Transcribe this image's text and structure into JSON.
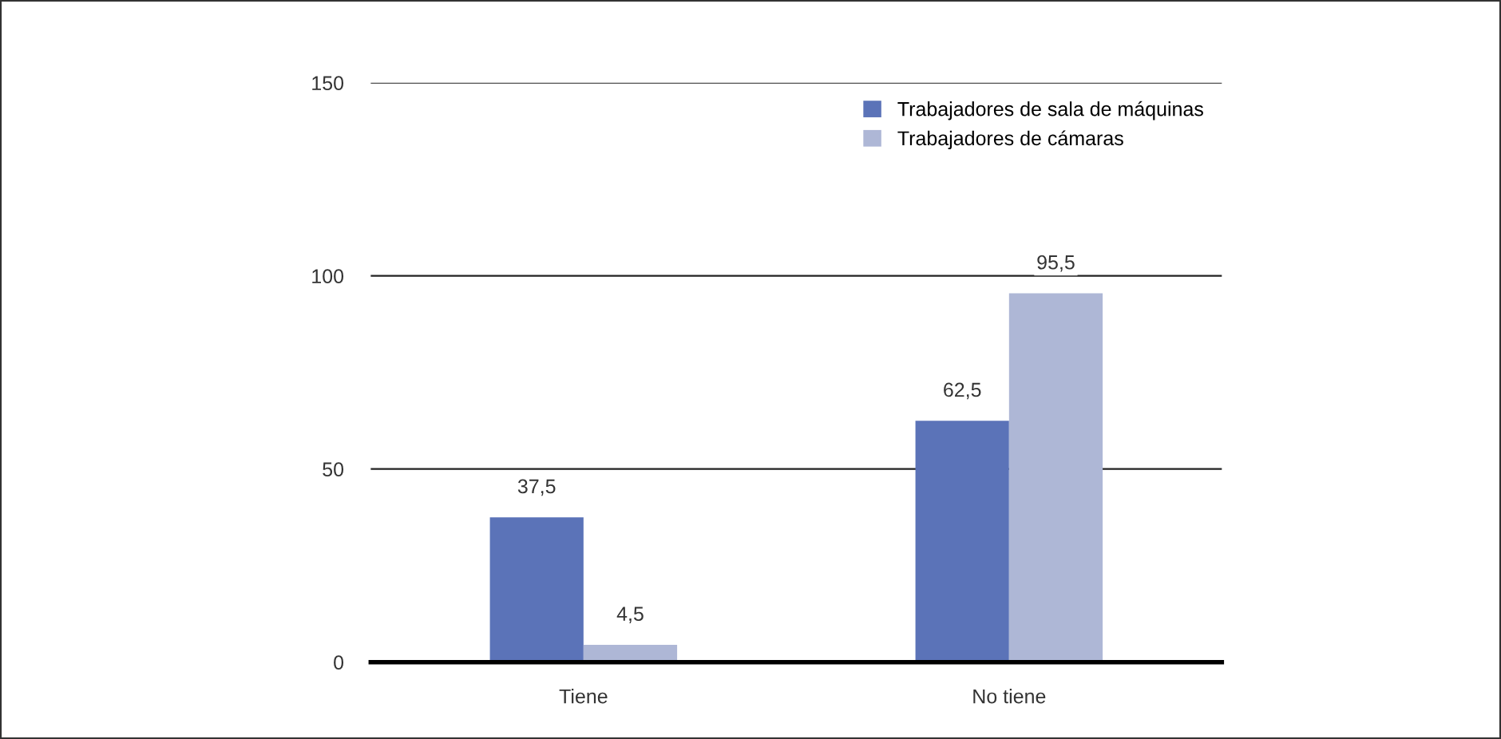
{
  "chart_data": {
    "type": "bar",
    "categories": [
      "Tiene",
      "No tiene"
    ],
    "series": [
      {
        "name": "Trabajadores de sala de máquinas",
        "color": "#5b73b8",
        "values": [
          37.5,
          62.5
        ],
        "value_labels": [
          "37,5",
          "62,5"
        ]
      },
      {
        "name": "Trabajadores de cámaras",
        "color": "#aeb7d6",
        "values": [
          4.5,
          95.5
        ],
        "value_labels": [
          "4,5",
          "95,5"
        ]
      }
    ],
    "ylim": [
      0,
      150
    ],
    "yticks": [
      0,
      50,
      100,
      150
    ],
    "grid": "y",
    "legend": "top right"
  }
}
